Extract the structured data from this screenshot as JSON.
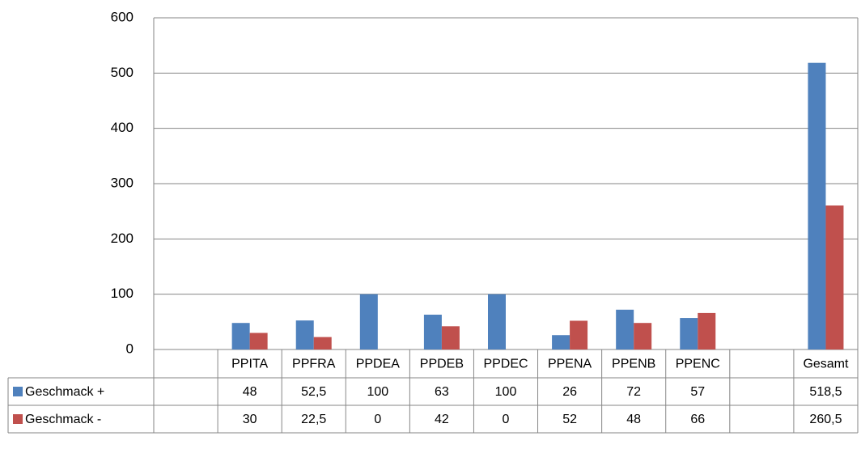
{
  "chart_data": {
    "type": "bar",
    "categories": [
      null,
      "PPITA",
      "PPFRA",
      "PPDEA",
      "PPDEB",
      "PPDEC",
      "PPENA",
      "PPENB",
      "PPENC",
      null,
      "Gesamt"
    ],
    "series": [
      {
        "name": "Geschmack +",
        "color": "#4f81bd",
        "values": [
          null,
          48,
          52.5,
          100,
          63,
          100,
          26,
          72,
          57,
          null,
          518.5
        ],
        "value_labels": [
          null,
          "48",
          "52,5",
          "100",
          "63",
          "100",
          "26",
          "72",
          "57",
          null,
          "518,5"
        ]
      },
      {
        "name": "Geschmack -",
        "color": "#c0504d",
        "values": [
          null,
          30,
          22.5,
          0,
          42,
          0,
          52,
          48,
          66,
          null,
          260.5
        ],
        "value_labels": [
          null,
          "30",
          "22,5",
          "0",
          "42",
          "0",
          "52",
          "48",
          "66",
          null,
          "260,5"
        ]
      }
    ],
    "ylim": [
      0,
      600
    ],
    "yticks": [
      0,
      100,
      200,
      300,
      400,
      500,
      600
    ],
    "grid": true
  }
}
